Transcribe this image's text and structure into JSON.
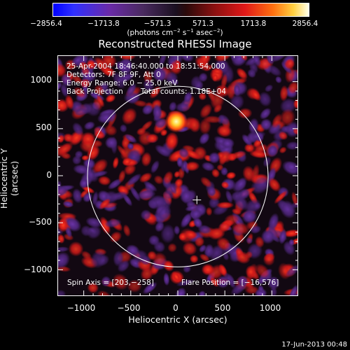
{
  "title": "Reconstructed RHESSI Image",
  "colorbar": {
    "ticks": [
      "−2856.4",
      "−1713.8",
      "−571.3",
      "571.3",
      "1713.8",
      "2856.4"
    ],
    "units_main": "(photons cm",
    "units_sup1": "−2",
    "units_mid1": " s",
    "units_sup2": "−1",
    "units_mid2": " asec",
    "units_sup3": "−2",
    "units_end": ")"
  },
  "annotations": {
    "line1": "25-Apr-2004 18:46:40.000 to 18:51:54.000",
    "line2": "Detectors: 7F 8F 9F, Att 0",
    "line3": "Energy Range: 6.0 − 25.0 keV",
    "line4_left": "Back Projection",
    "line4_right": "Total counts: 1.18E+04",
    "spin_axis": "Spin Axis = [203,−258]",
    "flare_position": "Flare Position = [−16,576]"
  },
  "axes": {
    "xlabel": "Heliocentric X (arcsec)",
    "ylabel": "Heliocentric Y (arcsec)",
    "xticks": [
      "−1000",
      "−500",
      "0",
      "500",
      "1000"
    ],
    "yticks": [
      "1000",
      "500",
      "0",
      "−500",
      "−1000"
    ],
    "xlim": [
      -1280,
      1280
    ],
    "ylim": [
      -1280,
      1280
    ]
  },
  "footer": "17-Jun-2013 00:48",
  "colors": {
    "background": "#000000",
    "map_negative": "#5a2a8a",
    "map_positive": "#e02020",
    "map_peak": "#ffff80",
    "limb": "#ffffff"
  }
}
